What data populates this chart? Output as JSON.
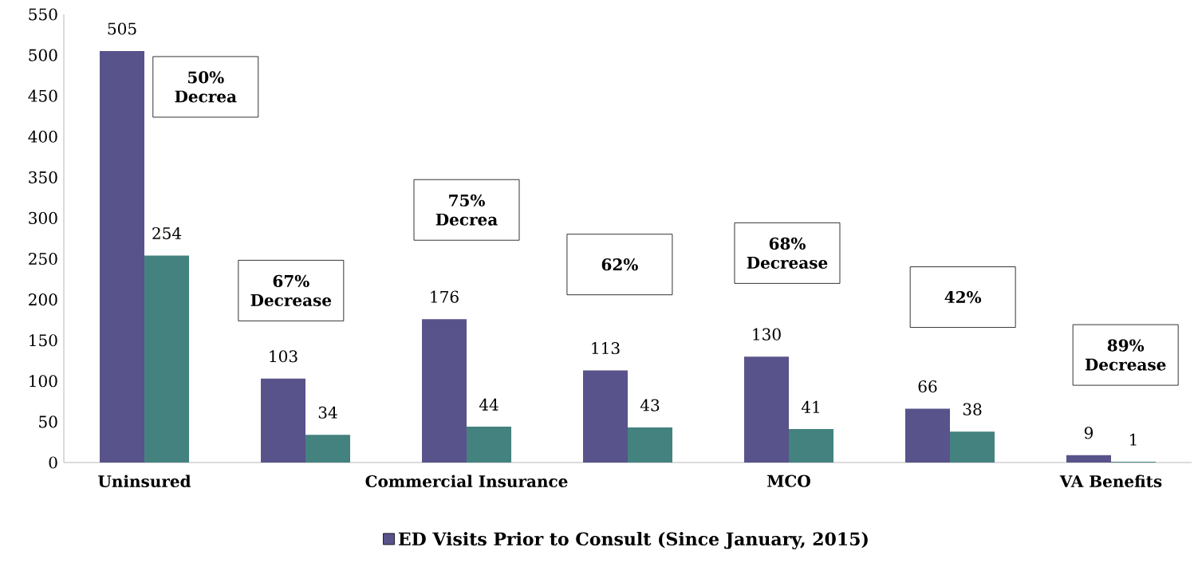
{
  "chart_data": {
    "type": "bar",
    "categories": [
      "Uninsured",
      null,
      "Commercial Insurance",
      null,
      "MCO",
      null,
      "VA Benefits"
    ],
    "series": [
      {
        "name": "ED Visits Prior to Consult (Since January, 2015)",
        "color": "#58538a",
        "values": [
          505,
          103,
          176,
          113,
          130,
          66,
          9
        ]
      },
      {
        "color": "#43827f",
        "values": [
          254,
          34,
          44,
          43,
          41,
          38,
          1
        ]
      }
    ],
    "ylim": [
      0,
      550
    ],
    "yticks": [
      0,
      50,
      100,
      150,
      200,
      250,
      300,
      350,
      400,
      450,
      500,
      550
    ],
    "data_labels": true,
    "legend": "bottom",
    "grid": false,
    "annotations": [
      "50% Decrea",
      "67% Decrease",
      "75% Decrea",
      "62%",
      "68% Decrease",
      "42%",
      "89% Decrease"
    ]
  }
}
